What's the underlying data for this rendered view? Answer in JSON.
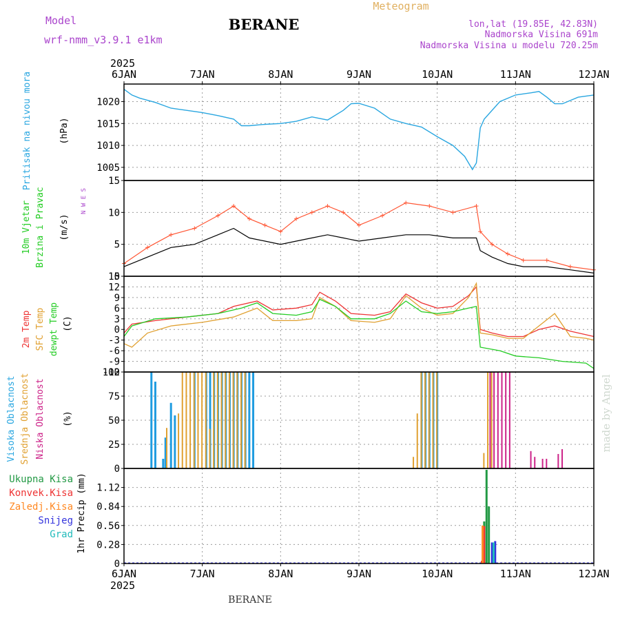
{
  "header": {
    "model_label": "Model",
    "model_name": "wrf-nmm_v3.9.1  e1km",
    "station": "BERANE",
    "meteogram": "Meteogram",
    "lonlat": "lon,lat (19.85E, 42.83N)",
    "elevation": "Nadmorska Visina 691m",
    "model_elevation": "Nadmorska Visina u modelu 720.25m",
    "footer_station": "BERANE",
    "credit": "made by Angel"
  },
  "colors": {
    "pressure": "#29a6e0",
    "wind_speed": "#000000",
    "wind_gust": "#ff5533",
    "temp_2m": "#ee3333",
    "temp_sfc": "#e0a030",
    "dewpoint": "#22cc22",
    "cloud_high": "#1f9ce0",
    "cloud_mid": "#e0a030",
    "cloud_low": "#cc2288",
    "precip_total": "#229944",
    "precip_conv": "#ee3333",
    "precip_frozen": "#ff8822",
    "precip_snow": "#3333dd",
    "precip_graupel": "#22bbbb"
  },
  "chart_data": [
    {
      "type": "line",
      "panel": "pressure",
      "year": "2025",
      "x_ticks": [
        "6JAN",
        "7JAN",
        "8JAN",
        "9JAN",
        "10JAN",
        "11JAN",
        "12JAN"
      ],
      "ylabel": "Pritisak na nivou mora",
      "unit": "(hPa)",
      "ylim": [
        1002,
        1024
      ],
      "yticks": [
        1005,
        1010,
        1015,
        1020
      ],
      "x": [
        0,
        0.1,
        0.2,
        0.4,
        0.6,
        0.8,
        1.0,
        1.2,
        1.4,
        1.5,
        1.6,
        1.8,
        2.0,
        2.2,
        2.4,
        2.6,
        2.8,
        2.9,
        3.0,
        3.2,
        3.4,
        3.6,
        3.8,
        4.0,
        4.2,
        4.35,
        4.45,
        4.5,
        4.55,
        4.6,
        4.8,
        5.0,
        5.2,
        5.3,
        5.4,
        5.5,
        5.6,
        5.8,
        6.0
      ],
      "values": [
        1022.8,
        1021.5,
        1020.8,
        1019.8,
        1018.5,
        1018.0,
        1017.5,
        1016.8,
        1016.0,
        1014.5,
        1014.5,
        1014.8,
        1015.0,
        1015.5,
        1016.5,
        1015.8,
        1018.0,
        1019.5,
        1019.6,
        1018.5,
        1016.0,
        1015.0,
        1014.2,
        1012.0,
        1010.0,
        1007.5,
        1004.5,
        1006.0,
        1014.0,
        1016.0,
        1020.0,
        1021.5,
        1022.0,
        1022.3,
        1021.0,
        1019.5,
        1019.5,
        1021.0,
        1021.5
      ]
    },
    {
      "type": "line",
      "panel": "wind",
      "ylabel": "10m Vjetar Brzina i Pravac",
      "unit": "(m/s)",
      "compass": "N  W E  S",
      "ylim": [
        0,
        15
      ],
      "yticks": [
        0,
        5,
        10,
        15
      ],
      "series": [
        {
          "name": "speed",
          "x": [
            0,
            0.3,
            0.6,
            0.9,
            1.2,
            1.4,
            1.6,
            1.8,
            2.0,
            2.2,
            2.4,
            2.6,
            2.8,
            3.0,
            3.3,
            3.6,
            3.9,
            4.2,
            4.5,
            4.55,
            4.7,
            4.9,
            5.1,
            5.4,
            5.7,
            6.0
          ],
          "values": [
            1.5,
            3.0,
            4.5,
            5.0,
            6.5,
            7.5,
            6.0,
            5.5,
            5.0,
            5.5,
            6.0,
            6.5,
            6.0,
            5.5,
            6.0,
            6.5,
            6.5,
            6.0,
            6.0,
            4.0,
            3.0,
            2.0,
            1.5,
            1.5,
            1.0,
            0.5
          ]
        },
        {
          "name": "gust",
          "x": [
            0,
            0.3,
            0.6,
            0.9,
            1.2,
            1.4,
            1.6,
            1.8,
            2.0,
            2.2,
            2.4,
            2.6,
            2.8,
            3.0,
            3.3,
            3.6,
            3.9,
            4.2,
            4.5,
            4.55,
            4.7,
            4.9,
            5.1,
            5.4,
            5.7,
            6.0
          ],
          "values": [
            2.0,
            4.5,
            6.5,
            7.5,
            9.5,
            11.0,
            9.0,
            8.0,
            7.0,
            9.0,
            10.0,
            11.0,
            10.0,
            8.0,
            9.5,
            11.5,
            11.0,
            10.0,
            11.0,
            7.0,
            5.0,
            3.5,
            2.5,
            2.5,
            1.5,
            1.0
          ]
        }
      ]
    },
    {
      "type": "line",
      "panel": "temperature",
      "ylabel": "2m Temp SFC Temp dewpt Temp",
      "unit": "(C)",
      "ylim": [
        -12,
        15
      ],
      "yticks": [
        -12,
        -9,
        -6,
        -3,
        0,
        3,
        6,
        9,
        12,
        15
      ],
      "series": [
        {
          "name": "2m Temp",
          "x": [
            0,
            0.1,
            0.4,
            0.8,
            1.2,
            1.4,
            1.7,
            1.9,
            2.2,
            2.4,
            2.5,
            2.7,
            2.9,
            3.2,
            3.4,
            3.6,
            3.8,
            4.0,
            4.2,
            4.4,
            4.5,
            4.55,
            4.7,
            4.9,
            5.1,
            5.3,
            5.5,
            5.7,
            5.9,
            6.0
          ],
          "values": [
            -1.0,
            1.5,
            2.5,
            3.5,
            4.5,
            6.5,
            8.0,
            5.5,
            6.0,
            7.0,
            10.5,
            8.0,
            4.5,
            4.0,
            5.0,
            10.0,
            7.5,
            6.0,
            6.5,
            9.5,
            12.0,
            0.0,
            -1.0,
            -2.0,
            -2.0,
            0.0,
            1.0,
            -0.5,
            -1.5,
            -2.0
          ]
        },
        {
          "name": "SFC Temp",
          "x": [
            0,
            0.1,
            0.3,
            0.6,
            1.0,
            1.4,
            1.7,
            1.9,
            2.2,
            2.4,
            2.5,
            2.7,
            2.9,
            3.2,
            3.4,
            3.6,
            3.8,
            4.0,
            4.2,
            4.4,
            4.5,
            4.55,
            4.7,
            4.9,
            5.1,
            5.3,
            5.5,
            5.7,
            5.9,
            6.0
          ],
          "values": [
            -4.0,
            -5.0,
            -1.0,
            1.0,
            2.0,
            3.5,
            6.0,
            2.5,
            2.5,
            3.0,
            9.0,
            6.5,
            2.5,
            2.0,
            3.0,
            9.5,
            6.0,
            4.0,
            4.5,
            9.0,
            13.0,
            -1.0,
            -1.5,
            -2.5,
            -2.5,
            1.0,
            4.5,
            -2.0,
            -2.5,
            -3.0
          ]
        },
        {
          "name": "dewpt Temp",
          "x": [
            0,
            0.1,
            0.4,
            0.8,
            1.2,
            1.5,
            1.7,
            1.9,
            2.2,
            2.4,
            2.5,
            2.7,
            2.9,
            3.2,
            3.4,
            3.6,
            3.8,
            4.0,
            4.2,
            4.4,
            4.5,
            4.55,
            4.8,
            5.0,
            5.3,
            5.6,
            5.9,
            6.0
          ],
          "values": [
            -2.0,
            1.0,
            3.0,
            3.5,
            4.5,
            6.0,
            7.5,
            4.5,
            4.0,
            5.0,
            8.5,
            6.5,
            3.0,
            3.0,
            4.5,
            8.0,
            5.0,
            4.5,
            5.0,
            6.0,
            6.5,
            -5.0,
            -6.0,
            -7.5,
            -8.0,
            -9.0,
            -9.5,
            -11.0
          ]
        }
      ]
    },
    {
      "type": "bar",
      "panel": "clouds",
      "ylabel": "Visoka Oblacnost Srednja Oblacnost Niska Oblacnost",
      "unit": "(%)",
      "ylim": [
        0,
        100
      ],
      "yticks": [
        0,
        25,
        50,
        75,
        100
      ],
      "series": [
        {
          "name": "Visoka Oblacnost",
          "x": [
            0.35,
            0.4,
            0.5,
            0.53,
            0.6,
            0.65,
            0.9,
            1.05,
            1.1,
            1.15,
            1.2,
            1.25,
            1.3,
            1.35,
            1.4,
            1.45,
            1.5,
            1.55,
            1.6,
            1.65,
            3.8,
            3.85,
            3.9,
            3.95,
            4.0
          ],
          "values": [
            100,
            90,
            10,
            32,
            68,
            55,
            100,
            100,
            100,
            100,
            100,
            100,
            100,
            100,
            100,
            100,
            100,
            100,
            100,
            100,
            100,
            100,
            100,
            100,
            100
          ]
        },
        {
          "name": "Srednja Oblacnost",
          "x": [
            0.55,
            0.7,
            0.75,
            0.8,
            0.85,
            0.9,
            0.95,
            1.0,
            1.05,
            1.1,
            1.15,
            1.2,
            1.25,
            1.3,
            1.35,
            1.4,
            1.45,
            1.5,
            1.55,
            3.7,
            3.75,
            3.8,
            3.85,
            3.9,
            3.95,
            4.0,
            4.6,
            4.65,
            4.7
          ],
          "values": [
            42,
            57,
            100,
            100,
            100,
            100,
            100,
            100,
            100,
            41,
            100,
            100,
            100,
            100,
            100,
            100,
            100,
            100,
            100,
            12,
            57,
            100,
            100,
            100,
            100,
            100,
            16,
            100,
            100
          ]
        },
        {
          "name": "Niska Oblacnost",
          "x": [
            4.68,
            4.73,
            4.78,
            4.83,
            4.88,
            4.93,
            5.2,
            5.25,
            5.35,
            5.4,
            5.55,
            5.6
          ],
          "values": [
            100,
            100,
            100,
            100,
            100,
            100,
            18,
            12,
            10,
            10,
            15,
            20
          ]
        }
      ]
    },
    {
      "type": "bar",
      "panel": "precip",
      "ylabel": "1hr Precip (mm)",
      "legend": [
        "Ukupna Kisa",
        "Konvek.Kisa",
        "Zaledj.Kisa",
        "Snijeg",
        "Grad"
      ],
      "ylim": [
        0,
        1.4
      ],
      "yticks": [
        0,
        0.28,
        0.56,
        0.84,
        1.12
      ],
      "series": [
        {
          "name": "Ukupna Kisa",
          "x": [
            4.6,
            4.63,
            4.66
          ],
          "values": [
            0.62,
            1.38,
            0.84
          ]
        },
        {
          "name": "Konvek.Kisa",
          "x": [
            4.57,
            4.6
          ],
          "values": [
            0.04,
            0.55
          ]
        },
        {
          "name": "Zaledj.Kisa",
          "x": [
            4.58
          ],
          "values": [
            0.56
          ]
        },
        {
          "name": "Snijeg",
          "x": [
            4.7,
            4.74
          ],
          "values": [
            0.31,
            0.33
          ]
        },
        {
          "name": "Grad",
          "x": [
            4.72
          ],
          "values": [
            0.31
          ]
        }
      ]
    }
  ]
}
